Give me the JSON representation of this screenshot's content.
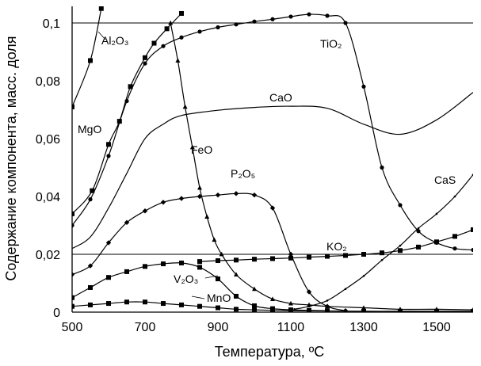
{
  "chart_data": {
    "type": "line",
    "title": "",
    "xlabel": "Температура, ºС",
    "ylabel": "Содержание компонента, масс. доля",
    "xlim": [
      500,
      1600
    ],
    "ylim": [
      0,
      0.1
    ],
    "grid": "horizontal lines at 0.02 and 0.1",
    "legend": "none",
    "x_ticks": [
      "500",
      "700",
      "900",
      "1100",
      "1300",
      "1500"
    ],
    "y_ticks": [
      "0",
      "0,02",
      "0,04",
      "0,06",
      "0,08",
      "0,1"
    ],
    "series": [
      {
        "name": "Al₂O₃",
        "marker": "square",
        "x": [
          500,
          550,
          580
        ],
        "y": [
          0.071,
          0.087,
          0.105
        ]
      },
      {
        "name": "MgO",
        "marker": "square",
        "x": [
          500,
          555,
          600,
          630,
          660,
          700,
          725,
          760,
          800
        ],
        "y": [
          0.034,
          0.042,
          0.058,
          0.066,
          0.078,
          0.088,
          0.093,
          0.098,
          0.1033
        ]
      },
      {
        "name": "TiO₂",
        "marker": "circle",
        "x": [
          500,
          550,
          600,
          650,
          700,
          750,
          800,
          850,
          900,
          950,
          1000,
          1050,
          1100,
          1150,
          1200,
          1250,
          1300,
          1350,
          1400,
          1450,
          1500,
          1550,
          1600
        ],
        "y": [
          0.03,
          0.039,
          0.054,
          0.073,
          0.086,
          0.092,
          0.095,
          0.097,
          0.0985,
          0.0995,
          0.1005,
          0.1013,
          0.1022,
          0.103,
          0.1025,
          0.1,
          0.078,
          0.05,
          0.037,
          0.028,
          0.024,
          0.022,
          0.0215
        ]
      },
      {
        "name": "CaO",
        "marker": "none",
        "x": [
          500,
          550,
          600,
          650,
          700,
          750,
          800,
          900,
          1000,
          1100,
          1200,
          1300,
          1400,
          1500,
          1600
        ],
        "y": [
          0.022,
          0.026,
          0.036,
          0.048,
          0.06,
          0.065,
          0.068,
          0.0698,
          0.0708,
          0.0712,
          0.0705,
          0.065,
          0.0615,
          0.0665,
          0.076
        ]
      },
      {
        "name": "FeO",
        "marker": "triangle",
        "x": [
          770,
          790,
          810,
          830,
          850,
          870,
          890,
          910,
          950,
          1000,
          1050,
          1100,
          1150,
          1200,
          1300,
          1400,
          1500,
          1600
        ],
        "y": [
          0.1,
          0.087,
          0.071,
          0.057,
          0.043,
          0.033,
          0.025,
          0.02,
          0.013,
          0.008,
          0.0045,
          0.003,
          0.0025,
          0.002,
          0.0015,
          0.001,
          0.001,
          0.0008
        ]
      },
      {
        "name": "P₂O₅",
        "marker": "diamond",
        "x": [
          500,
          550,
          600,
          650,
          700,
          750,
          800,
          850,
          900,
          950,
          1000,
          1050,
          1100,
          1150,
          1200,
          1250
        ],
        "y": [
          0.013,
          0.016,
          0.024,
          0.031,
          0.035,
          0.038,
          0.0393,
          0.04,
          0.0405,
          0.041,
          0.0405,
          0.036,
          0.02,
          0.007,
          0.002,
          0.0005
        ]
      },
      {
        "name": "CaS",
        "marker": "dot",
        "x": [
          1110,
          1150,
          1200,
          1250,
          1300,
          1350,
          1400,
          1450,
          1500,
          1550,
          1600
        ],
        "y": [
          0.001,
          0.002,
          0.004,
          0.008,
          0.0125,
          0.018,
          0.023,
          0.029,
          0.034,
          0.04,
          0.0475
        ]
      },
      {
        "name": "KO₂",
        "marker": "square",
        "x": [
          850,
          900,
          950,
          1000,
          1050,
          1100,
          1150,
          1200,
          1250,
          1300,
          1350,
          1400,
          1450,
          1500,
          1550,
          1600
        ],
        "y": [
          0.0175,
          0.0178,
          0.018,
          0.0183,
          0.0185,
          0.0187,
          0.019,
          0.0193,
          0.0196,
          0.02,
          0.0205,
          0.0213,
          0.0225,
          0.0243,
          0.0262,
          0.0285
        ]
      },
      {
        "name": "V₂O₃",
        "marker": "square",
        "x": [
          500,
          550,
          600,
          650,
          700,
          750,
          800,
          850,
          900,
          950,
          1000,
          1050,
          1100,
          1150,
          1200
        ],
        "y": [
          0.005,
          0.0085,
          0.012,
          0.014,
          0.0158,
          0.0167,
          0.017,
          0.0155,
          0.0115,
          0.0055,
          0.0022,
          0.0012,
          0.0008,
          0.0006,
          0.0005
        ]
      },
      {
        "name": "MnO",
        "marker": "square",
        "x": [
          500,
          550,
          600,
          650,
          700,
          750,
          800,
          850,
          900,
          950,
          1000,
          1050,
          1100,
          1200,
          1300,
          1400,
          1500,
          1600
        ],
        "y": [
          0.002,
          0.0025,
          0.003,
          0.0035,
          0.0035,
          0.003,
          0.0025,
          0.002,
          0.0015,
          0.001,
          0.0008,
          0.0006,
          0.0005,
          0.0004,
          0.0003,
          0.0003,
          0.0003,
          0.0003
        ]
      }
    ]
  }
}
